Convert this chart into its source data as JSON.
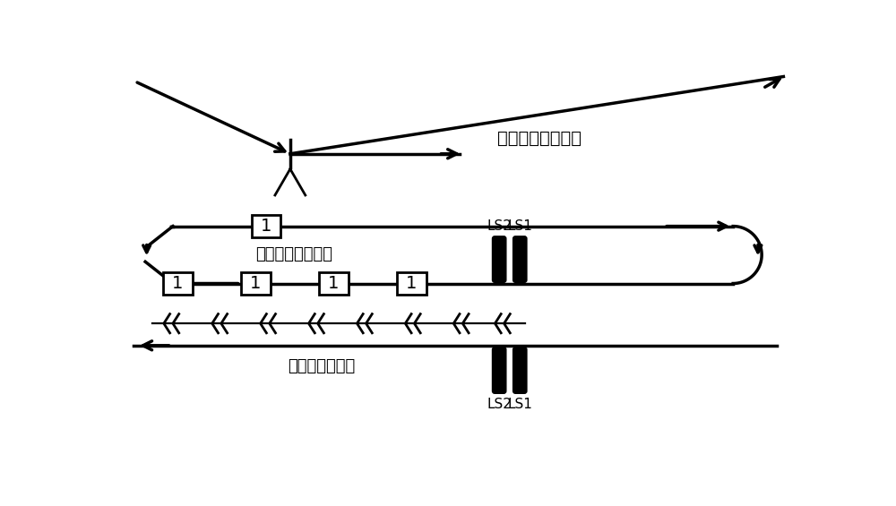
{
  "bg_color": "#ffffff",
  "line_color": "#000000",
  "lw": 2.0,
  "tlw": 2.5,
  "label_aerial_engine": "空中发动机分装线",
  "label_ground_engine": "地面发动机环行线",
  "label_chassis": "空中底盘工艺链",
  "font_size": 14,
  "small_font_size": 11
}
